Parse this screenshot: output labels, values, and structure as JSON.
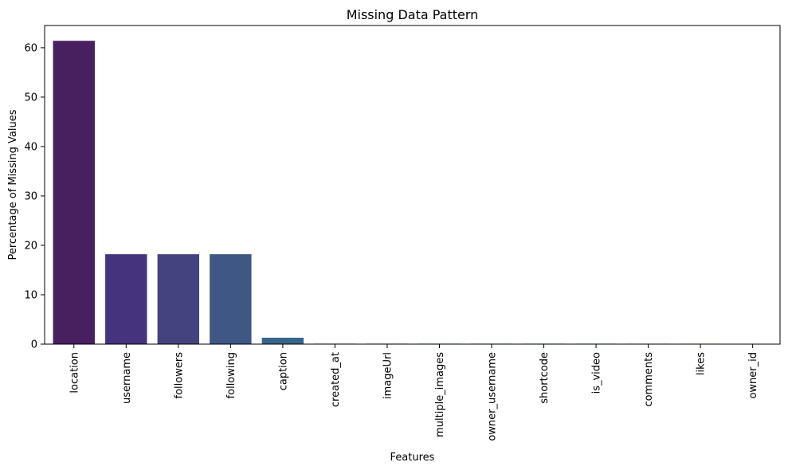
{
  "chart_data": {
    "type": "bar",
    "title": "Missing Data Pattern",
    "xlabel": "Features",
    "ylabel": "Percentage of Missing Values",
    "ylim": [
      0,
      64.5
    ],
    "yticks": [
      0,
      10,
      20,
      30,
      40,
      50,
      60
    ],
    "categories": [
      "location",
      "username",
      "followers",
      "following",
      "caption",
      "created_at",
      "imageUrl",
      "multiple_images",
      "owner_username",
      "shortcode",
      "is_video",
      "comments",
      "likes",
      "owner_id"
    ],
    "values": [
      61.4,
      18.2,
      18.2,
      18.2,
      1.3,
      0.1,
      0.1,
      0.1,
      0.1,
      0.1,
      0.1,
      0.1,
      0.1,
      0
    ],
    "colors": [
      "#481f5f",
      "#46337e",
      "#45437f",
      "#3f5784",
      "#38668a",
      "#32758c",
      "#2b848c",
      "#24928a",
      "#1fa186",
      "#29af7f",
      "#46be71",
      "#6dcc5a",
      "#a2d936",
      "#dae319"
    ],
    "grid": false,
    "legend": "none"
  }
}
